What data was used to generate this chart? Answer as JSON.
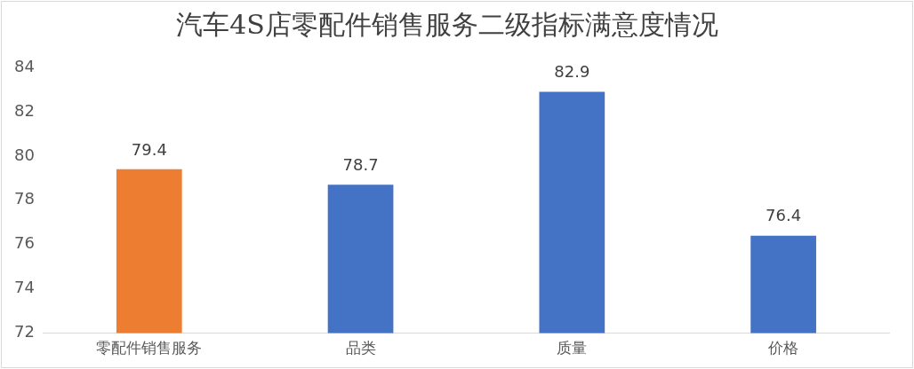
{
  "chart_data": {
    "type": "bar",
    "title": "汽车4S店零配件销售服务二级指标满意度情况",
    "categories": [
      "零配件销售服务",
      "品类",
      "质量",
      "价格"
    ],
    "values": [
      79.4,
      78.7,
      82.9,
      76.4
    ],
    "colors": [
      "#ed7d31",
      "#4472c4",
      "#4472c4",
      "#4472c4"
    ],
    "ylim": [
      72,
      84
    ],
    "yticks": [
      72,
      74,
      76,
      78,
      80,
      82,
      84
    ],
    "grid": false,
    "legend": false,
    "data_labels": true
  }
}
